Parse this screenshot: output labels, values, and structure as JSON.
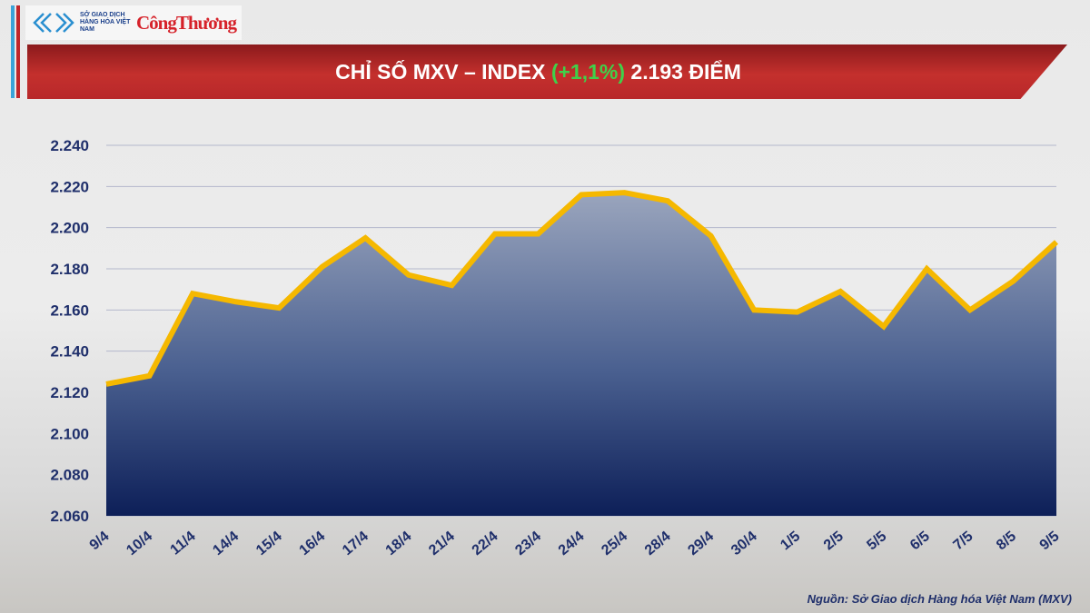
{
  "header": {
    "logo_mxv_text": "SỞ GIAO DỊCH HÀNG HÓA VIỆT NAM",
    "logo_congthuong_text": "CôngThương"
  },
  "banner": {
    "title_prefix": "CHỈ SỐ MXV – INDEX",
    "change": "(+1,1%)",
    "title_suffix": "2.193 ĐIỂM"
  },
  "source": "Nguồn: Sở Giao dịch Hàng hóa Việt Nam (MXV)",
  "chart_data": {
    "type": "area",
    "title": "CHỈ SỐ MXV – INDEX (+1,1%) 2.193 ĐIỂM",
    "categories": [
      "9/4",
      "10/4",
      "11/4",
      "14/4",
      "15/4",
      "16/4",
      "17/4",
      "18/4",
      "21/4",
      "22/4",
      "23/4",
      "24/4",
      "25/4",
      "28/4",
      "29/4",
      "30/4",
      "1/5",
      "2/5",
      "5/5",
      "6/5",
      "7/5",
      "8/5",
      "9/5"
    ],
    "values": [
      2124,
      2128,
      2168,
      2164,
      2161,
      2181,
      2195,
      2177,
      2172,
      2197,
      2197,
      2216,
      2217,
      2213,
      2196,
      2160,
      2159,
      2169,
      2152,
      2180,
      2160,
      2174,
      2193
    ],
    "ylim": [
      2060,
      2240
    ],
    "yticks": [
      2060,
      2080,
      2100,
      2120,
      2140,
      2160,
      2180,
      2200,
      2220,
      2240
    ],
    "ytick_labels": [
      "2.060",
      "2.080",
      "2.100",
      "2.120",
      "2.140",
      "2.160",
      "2.180",
      "2.200",
      "2.220",
      "2.240"
    ],
    "grid": true,
    "colors": {
      "line": "#f5b800",
      "fill_top": "#8f9bb5",
      "fill_bottom": "#10215a",
      "banner": "#c4302d",
      "change": "#3fd14a"
    }
  }
}
